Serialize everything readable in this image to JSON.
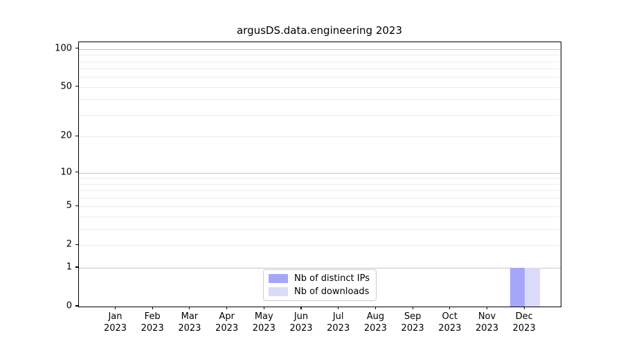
{
  "chart_data": {
    "type": "bar",
    "title": "argusDS.data.engineering 2023",
    "x_ticks": [
      {
        "month": "Jan",
        "year": "2023"
      },
      {
        "month": "Feb",
        "year": "2023"
      },
      {
        "month": "Mar",
        "year": "2023"
      },
      {
        "month": "Apr",
        "year": "2023"
      },
      {
        "month": "May",
        "year": "2023"
      },
      {
        "month": "Jun",
        "year": "2023"
      },
      {
        "month": "Jul",
        "year": "2023"
      },
      {
        "month": "Aug",
        "year": "2023"
      },
      {
        "month": "Sep",
        "year": "2023"
      },
      {
        "month": "Oct",
        "year": "2023"
      },
      {
        "month": "Nov",
        "year": "2023"
      },
      {
        "month": "Dec",
        "year": "2023"
      }
    ],
    "series": [
      {
        "name": "Nb of distinct IPs",
        "color": "#a6a6f8",
        "values": [
          0,
          0,
          0,
          0,
          0,
          0,
          0,
          0,
          0,
          0,
          0,
          1
        ]
      },
      {
        "name": "Nb of downloads",
        "color": "#dadaf9",
        "values": [
          0,
          0,
          0,
          0,
          0,
          0,
          0,
          0,
          0,
          0,
          0,
          1
        ]
      }
    ],
    "yscale": "log1p",
    "ylim": [
      0,
      113
    ],
    "y_ticks": [
      {
        "value": 0,
        "label": "0"
      },
      {
        "value": 1,
        "label": "1"
      },
      {
        "value": 2,
        "label": "2"
      },
      {
        "value": 5,
        "label": "5"
      },
      {
        "value": 10,
        "label": "10"
      },
      {
        "value": 20,
        "label": "20"
      },
      {
        "value": 50,
        "label": "50"
      },
      {
        "value": 100,
        "label": "100"
      }
    ],
    "y_major_grid": [
      1,
      10,
      100
    ],
    "y_minor_grid": [
      2,
      3,
      4,
      5,
      6,
      7,
      8,
      9,
      20,
      30,
      40,
      50,
      60,
      70,
      80,
      90
    ],
    "grid": true,
    "legend_position": "lower center"
  },
  "colors": {
    "grid_major": "#c6c6c6",
    "grid_minor": "#ececec",
    "spine": "#000000",
    "legend_border": "#cccccc",
    "background": "#ffffff",
    "text": "#000000"
  }
}
